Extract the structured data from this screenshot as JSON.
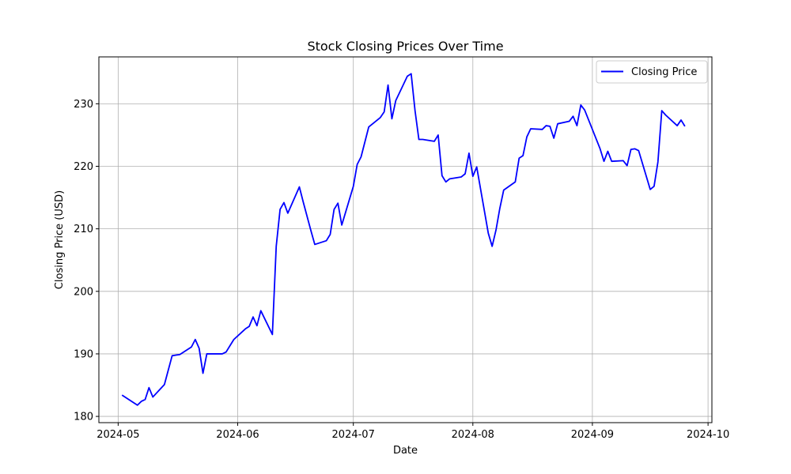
{
  "chart_data": {
    "type": "line",
    "title": "Stock Closing Prices Over Time",
    "xlabel": "Date",
    "ylabel": "Closing Price (USD)",
    "x_ticks": [
      "2024-05",
      "2024-06",
      "2024-07",
      "2024-08",
      "2024-09",
      "2024-10"
    ],
    "y_ticks": [
      180,
      190,
      200,
      210,
      220,
      230
    ],
    "xlim": [
      "2024-04-26",
      "2024-10-02"
    ],
    "ylim": [
      179,
      237.5
    ],
    "grid": true,
    "legend_position": "top-right",
    "series": [
      {
        "name": "Closing Price",
        "color": "#0000ff",
        "points": [
          [
            "2024-05-02",
            183.4
          ],
          [
            "2024-05-06",
            181.8
          ],
          [
            "2024-05-07",
            182.4
          ],
          [
            "2024-05-08",
            182.7
          ],
          [
            "2024-05-09",
            184.6
          ],
          [
            "2024-05-10",
            183.1
          ],
          [
            "2024-05-13",
            185.1
          ],
          [
            "2024-05-14",
            187.4
          ],
          [
            "2024-05-15",
            189.7
          ],
          [
            "2024-05-16",
            189.8
          ],
          [
            "2024-05-17",
            189.9
          ],
          [
            "2024-05-20",
            191.1
          ],
          [
            "2024-05-21",
            192.3
          ],
          [
            "2024-05-22",
            190.9
          ],
          [
            "2024-05-23",
            186.9
          ],
          [
            "2024-05-24",
            190.0
          ],
          [
            "2024-05-28",
            190.0
          ],
          [
            "2024-05-29",
            190.3
          ],
          [
            "2024-05-30",
            191.3
          ],
          [
            "2024-05-31",
            192.3
          ],
          [
            "2024-06-03",
            194.0
          ],
          [
            "2024-06-04",
            194.4
          ],
          [
            "2024-06-05",
            195.9
          ],
          [
            "2024-06-06",
            194.5
          ],
          [
            "2024-06-07",
            196.9
          ],
          [
            "2024-06-10",
            193.1
          ],
          [
            "2024-06-11",
            207.2
          ],
          [
            "2024-06-12",
            213.1
          ],
          [
            "2024-06-13",
            214.2
          ],
          [
            "2024-06-14",
            212.5
          ],
          [
            "2024-06-17",
            216.7
          ],
          [
            "2024-06-18",
            214.3
          ],
          [
            "2024-06-20",
            209.7
          ],
          [
            "2024-06-21",
            207.5
          ],
          [
            "2024-06-24",
            208.1
          ],
          [
            "2024-06-25",
            209.1
          ],
          [
            "2024-06-26",
            213.1
          ],
          [
            "2024-06-27",
            214.1
          ],
          [
            "2024-06-28",
            210.6
          ],
          [
            "2024-07-01",
            216.8
          ],
          [
            "2024-07-02",
            220.3
          ],
          [
            "2024-07-03",
            221.5
          ],
          [
            "2024-07-05",
            226.3
          ],
          [
            "2024-07-08",
            227.8
          ],
          [
            "2024-07-09",
            228.7
          ],
          [
            "2024-07-10",
            233.0
          ],
          [
            "2024-07-11",
            227.6
          ],
          [
            "2024-07-12",
            230.5
          ],
          [
            "2024-07-15",
            234.4
          ],
          [
            "2024-07-16",
            234.8
          ],
          [
            "2024-07-17",
            228.9
          ],
          [
            "2024-07-18",
            224.3
          ],
          [
            "2024-07-19",
            224.3
          ],
          [
            "2024-07-22",
            224.0
          ],
          [
            "2024-07-23",
            225.0
          ],
          [
            "2024-07-24",
            218.5
          ],
          [
            "2024-07-25",
            217.5
          ],
          [
            "2024-07-26",
            218.0
          ],
          [
            "2024-07-29",
            218.3
          ],
          [
            "2024-07-30",
            218.8
          ],
          [
            "2024-07-31",
            222.1
          ],
          [
            "2024-08-01",
            218.4
          ],
          [
            "2024-08-02",
            219.9
          ],
          [
            "2024-08-05",
            209.3
          ],
          [
            "2024-08-06",
            207.2
          ],
          [
            "2024-08-07",
            209.8
          ],
          [
            "2024-08-08",
            213.3
          ],
          [
            "2024-08-09",
            216.2
          ],
          [
            "2024-08-12",
            217.5
          ],
          [
            "2024-08-13",
            221.3
          ],
          [
            "2024-08-14",
            221.7
          ],
          [
            "2024-08-15",
            224.7
          ],
          [
            "2024-08-16",
            226.0
          ],
          [
            "2024-08-19",
            225.9
          ],
          [
            "2024-08-20",
            226.5
          ],
          [
            "2024-08-21",
            226.4
          ],
          [
            "2024-08-22",
            224.5
          ],
          [
            "2024-08-23",
            226.8
          ],
          [
            "2024-08-26",
            227.2
          ],
          [
            "2024-08-27",
            228.0
          ],
          [
            "2024-08-28",
            226.5
          ],
          [
            "2024-08-29",
            229.8
          ],
          [
            "2024-08-30",
            229.0
          ],
          [
            "2024-09-03",
            222.8
          ],
          [
            "2024-09-04",
            220.8
          ],
          [
            "2024-09-05",
            222.4
          ],
          [
            "2024-09-06",
            220.8
          ],
          [
            "2024-09-09",
            220.9
          ],
          [
            "2024-09-10",
            220.1
          ],
          [
            "2024-09-11",
            222.7
          ],
          [
            "2024-09-12",
            222.8
          ],
          [
            "2024-09-13",
            222.5
          ],
          [
            "2024-09-16",
            216.3
          ],
          [
            "2024-09-17",
            216.8
          ],
          [
            "2024-09-18",
            220.7
          ],
          [
            "2024-09-19",
            228.9
          ],
          [
            "2024-09-20",
            228.2
          ],
          [
            "2024-09-23",
            226.5
          ],
          [
            "2024-09-24",
            227.4
          ],
          [
            "2024-09-25",
            226.4
          ]
        ]
      }
    ]
  }
}
